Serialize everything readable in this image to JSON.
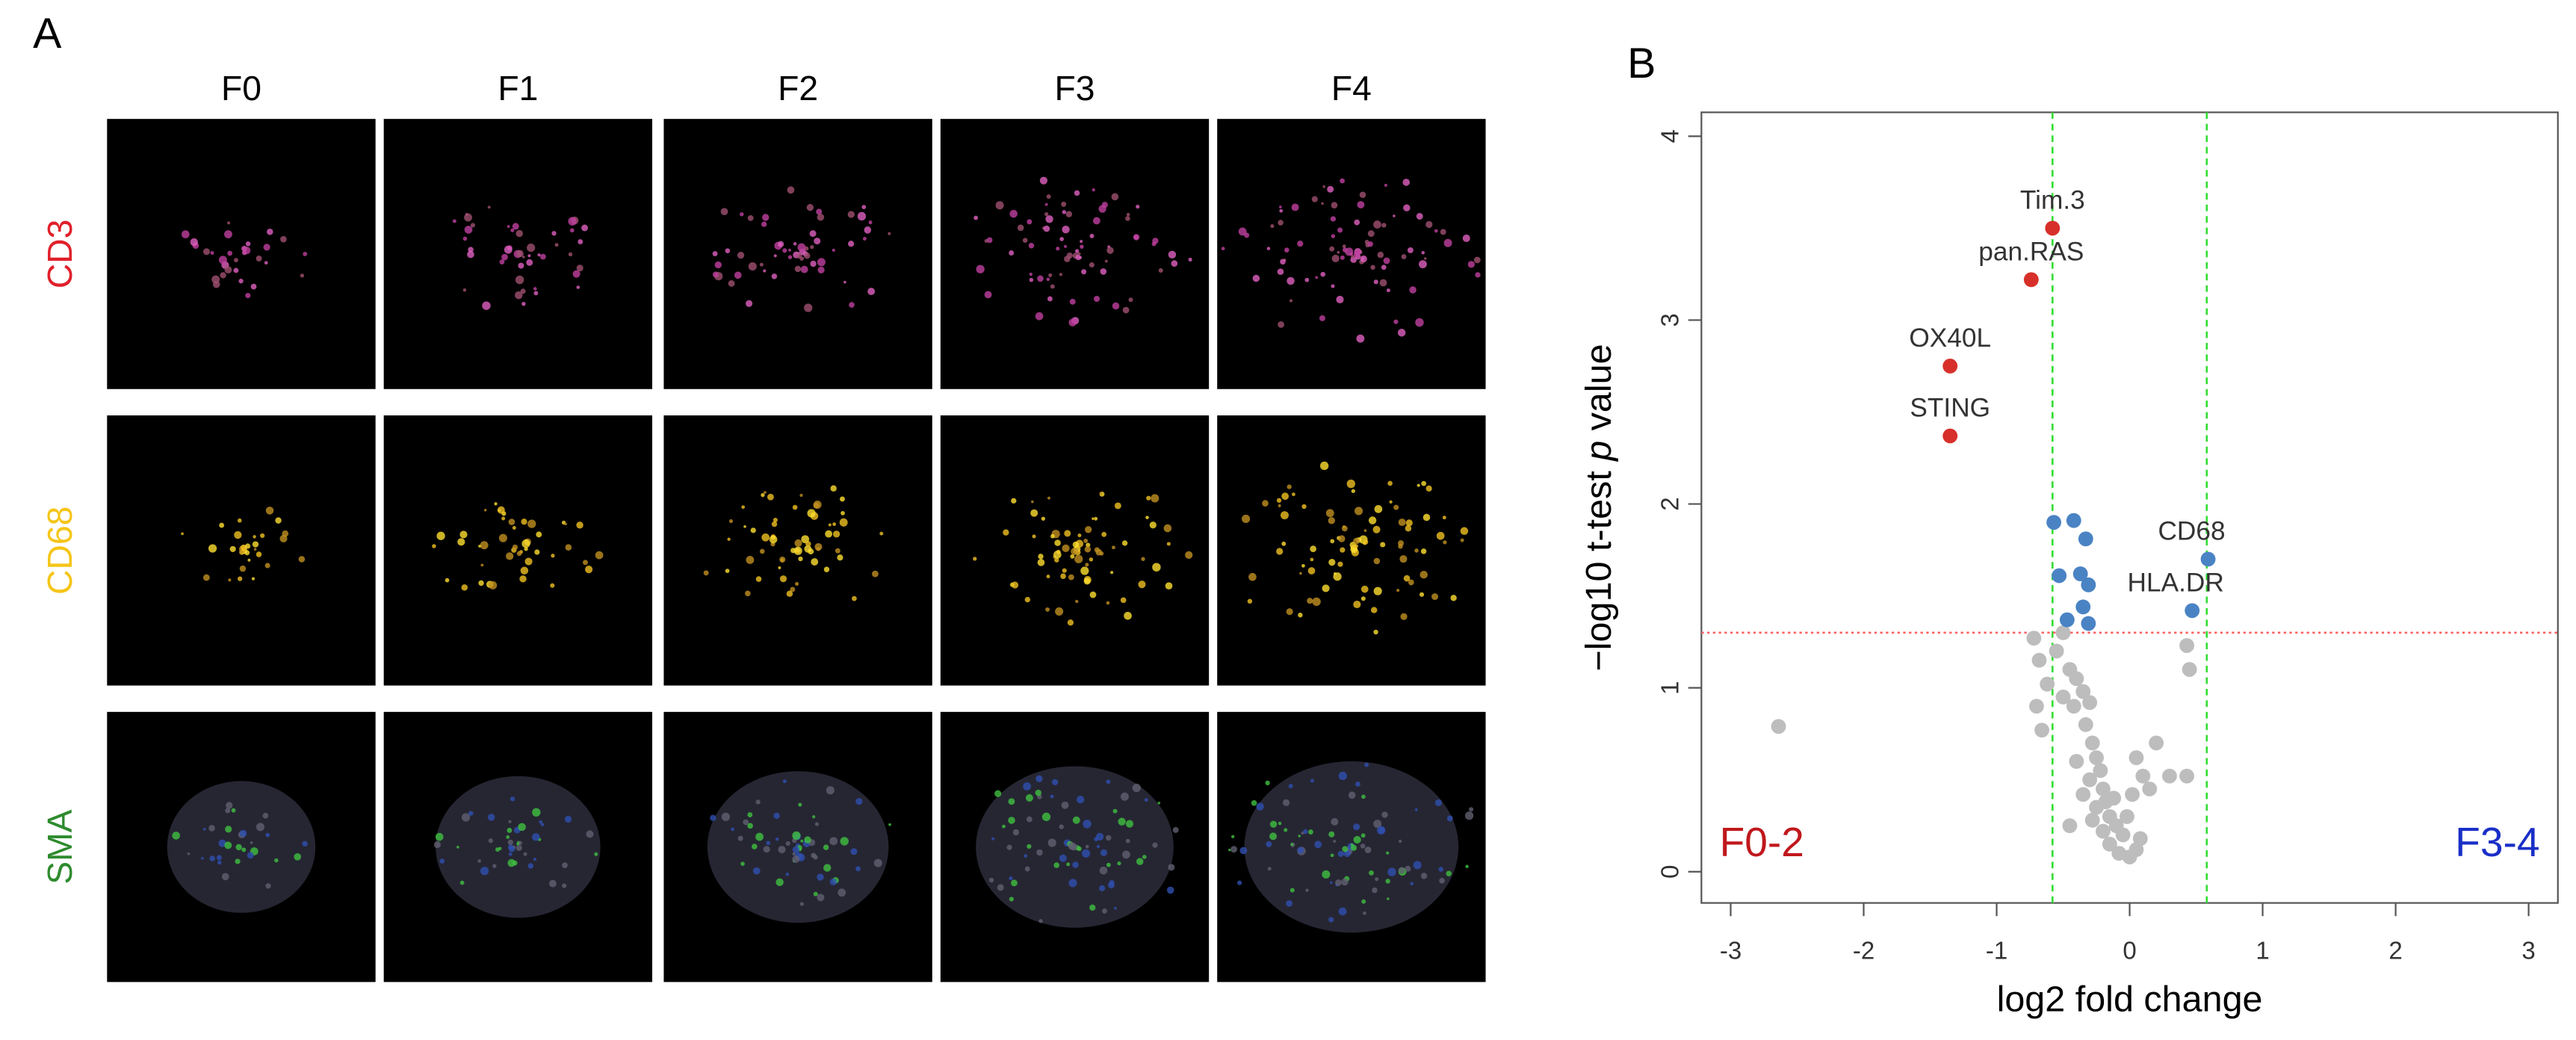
{
  "panel_a": {
    "label": "A",
    "columns": [
      "F0",
      "F1",
      "F2",
      "F3",
      "F4"
    ],
    "rows": [
      {
        "text": "CD3",
        "color": "#e0202a"
      },
      {
        "text": "CD68",
        "color": "#f5c518"
      },
      {
        "text": "SMA",
        "color": "#2e8b2e"
      }
    ]
  },
  "chart_data": {
    "type": "scatter",
    "panel_label": "B",
    "xlabel": "log2 fold change",
    "ylabel": [
      "−log10 t-test ",
      "p",
      " value"
    ],
    "xlim": [
      -3.22,
      3.22
    ],
    "ylim": [
      -0.17,
      4.13
    ],
    "xticks": [
      -3,
      -2,
      -1,
      0,
      1,
      2,
      3
    ],
    "yticks": [
      0,
      1,
      2,
      3,
      4
    ],
    "vlines": [
      -0.58,
      0.58
    ],
    "vline_color": "#33dd33",
    "hline": 1.3,
    "hline_color": "#ff6060",
    "series": [
      {
        "color": "#bdbdbd",
        "x": [
          -2.64,
          -0.72,
          -0.68,
          -0.62,
          -0.7,
          -0.66,
          -0.55,
          -0.5,
          -0.45,
          -0.4,
          -0.35,
          -0.5,
          -0.42,
          -0.3,
          -0.33,
          -0.28,
          -0.25,
          -0.22,
          -0.3,
          -0.2,
          -0.35,
          -0.18,
          -0.12,
          -0.25,
          -0.15,
          -0.28,
          -0.1,
          -0.2,
          -0.05,
          -0.15,
          -0.08,
          0,
          0.05,
          0.08,
          -0.02,
          0.02,
          0.1,
          0.05,
          0.15,
          0.3,
          0.43,
          0.43,
          0.45,
          -0.4,
          -0.45,
          0.2
        ],
        "y": [
          0.79,
          1.27,
          1.15,
          1.02,
          0.9,
          0.77,
          1.2,
          1.3,
          1.1,
          1.05,
          0.98,
          0.95,
          0.9,
          0.92,
          0.8,
          0.7,
          0.62,
          0.55,
          0.5,
          0.45,
          0.42,
          0.38,
          0.4,
          0.35,
          0.3,
          0.28,
          0.25,
          0.22,
          0.2,
          0.15,
          0.1,
          0.08,
          0.12,
          0.18,
          0.3,
          0.42,
          0.52,
          0.62,
          0.45,
          0.52,
          0.52,
          1.23,
          1.1,
          0.6,
          0.25,
          0.7
        ]
      },
      {
        "color": "#4a83c4",
        "x": [
          0.59,
          0.47,
          -0.57,
          -0.42,
          -0.33,
          -0.53,
          -0.37,
          -0.31,
          -0.35,
          -0.47,
          -0.31
        ],
        "y": [
          1.7,
          1.42,
          1.9,
          1.91,
          1.81,
          1.61,
          1.62,
          1.56,
          1.44,
          1.37,
          1.35
        ],
        "labels": [
          "CD68",
          "HLA.DR",
          null,
          null,
          null,
          null,
          null,
          null,
          null,
          null,
          null
        ]
      },
      {
        "color": "#d7302a",
        "x": [
          -0.58,
          -0.74,
          -1.35,
          -1.35
        ],
        "y": [
          3.5,
          3.22,
          2.75,
          2.37
        ],
        "labels": [
          "Tim.3",
          "pan.RAS",
          "OX40L",
          "STING"
        ]
      }
    ],
    "annotations": [
      {
        "text": "F0-2",
        "color": "#c0181c",
        "corner": "bottom-left"
      },
      {
        "text": "F3-4",
        "color": "#1a2fc7",
        "corner": "bottom-right"
      }
    ]
  }
}
